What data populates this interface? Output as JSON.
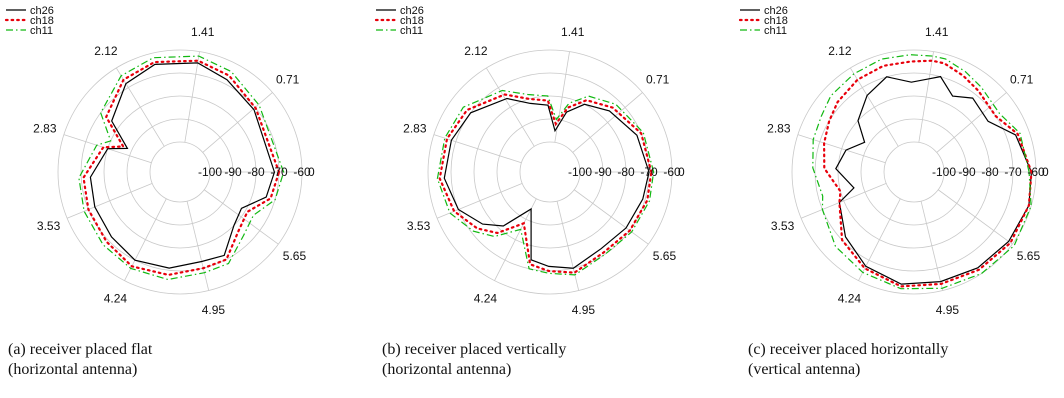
{
  "legend": [
    {
      "name": "ch26",
      "color": "#000000",
      "dash": "solid"
    },
    {
      "name": "ch18",
      "color": "#e8000b",
      "dash": "dotted"
    },
    {
      "name": "ch11",
      "color": "#11b811",
      "dash": "dashdot"
    }
  ],
  "captions": [
    {
      "line1": "(a) receiver placed flat",
      "line2": "(horizontal antenna)"
    },
    {
      "line1": "(b) receiver placed vertically",
      "line2": "(horizontal antenna)"
    },
    {
      "line1": "(c)  receiver placed horizontally",
      "line2": "(vertical antenna)"
    }
  ],
  "chart_data": [
    {
      "type": "polar-line",
      "angle_tick_labels": [
        "0",
        "0.71",
        "1.41",
        "2.12",
        "2.83",
        "3.53",
        "4.24",
        "4.95",
        "5.65"
      ],
      "radial_tick_labels": [
        "-100",
        "-90",
        "-80",
        "-70",
        "-60"
      ],
      "rlim": [
        -100,
        -60
      ],
      "grid": true,
      "legend_placement": "top-left",
      "series": [
        {
          "name": "ch26",
          "points": [
            [
              0,
              -72
            ],
            [
              0.7,
              -71
            ],
            [
              1.1,
              -68
            ],
            [
              1.41,
              -65
            ],
            [
              1.8,
              -65
            ],
            [
              2.12,
              -68
            ],
            [
              2.5,
              -76
            ],
            [
              2.72,
              -88
            ],
            [
              2.83,
              -80
            ],
            [
              3.2,
              -74
            ],
            [
              3.53,
              -73
            ],
            [
              3.9,
              -72
            ],
            [
              4.24,
              -70
            ],
            [
              4.6,
              -71
            ],
            [
              4.95,
              -73
            ],
            [
              5.2,
              -72
            ],
            [
              5.5,
              -80
            ],
            [
              5.75,
              -82
            ],
            [
              6.0,
              -74
            ],
            [
              6.28,
              -72
            ]
          ]
        },
        {
          "name": "ch18",
          "points": [
            [
              0,
              -70
            ],
            [
              0.7,
              -70
            ],
            [
              1.1,
              -66
            ],
            [
              1.41,
              -64
            ],
            [
              1.8,
              -64
            ],
            [
              2.12,
              -66
            ],
            [
              2.5,
              -73
            ],
            [
              2.72,
              -86
            ],
            [
              2.83,
              -78
            ],
            [
              3.2,
              -71
            ],
            [
              3.53,
              -70
            ],
            [
              3.9,
              -69
            ],
            [
              4.24,
              -67
            ],
            [
              4.6,
              -68
            ],
            [
              4.95,
              -70
            ],
            [
              5.2,
              -70
            ],
            [
              5.5,
              -77
            ],
            [
              5.75,
              -79
            ],
            [
              6.0,
              -72
            ],
            [
              6.28,
              -70
            ]
          ]
        },
        {
          "name": "ch11",
          "points": [
            [
              0,
              -68
            ],
            [
              0.7,
              -68
            ],
            [
              1.1,
              -64
            ],
            [
              1.41,
              -62
            ],
            [
              1.8,
              -62
            ],
            [
              2.12,
              -64
            ],
            [
              2.5,
              -70
            ],
            [
              2.72,
              -80
            ],
            [
              2.83,
              -75
            ],
            [
              3.2,
              -69
            ],
            [
              3.53,
              -68
            ],
            [
              3.9,
              -67
            ],
            [
              4.24,
              -66
            ],
            [
              4.6,
              -66
            ],
            [
              4.95,
              -68
            ],
            [
              5.2,
              -68
            ],
            [
              5.5,
              -74
            ],
            [
              5.75,
              -76
            ],
            [
              6.0,
              -70
            ],
            [
              6.28,
              -68
            ]
          ]
        }
      ]
    },
    {
      "type": "polar-line",
      "angle_tick_labels": [
        "0",
        "0.71",
        "1.41",
        "2.12",
        "2.83",
        "3.53",
        "4.24",
        "4.95",
        "5.65"
      ],
      "radial_tick_labels": [
        "-100",
        "-90",
        "-80",
        "-70",
        "-60"
      ],
      "rlim": [
        -100,
        -60
      ],
      "grid": true,
      "legend_placement": "top-left",
      "series": [
        {
          "name": "ch26",
          "points": [
            [
              0,
              -70
            ],
            [
              0.4,
              -72
            ],
            [
              0.8,
              -76
            ],
            [
              1.1,
              -80
            ],
            [
              1.3,
              -86
            ],
            [
              1.45,
              -95
            ],
            [
              1.6,
              -84
            ],
            [
              1.85,
              -82
            ],
            [
              2.1,
              -76
            ],
            [
              2.5,
              -70
            ],
            [
              2.83,
              -68
            ],
            [
              3.2,
              -67
            ],
            [
              3.53,
              -70
            ],
            [
              3.8,
              -76
            ],
            [
              4.0,
              -82
            ],
            [
              4.24,
              -95
            ],
            [
              4.5,
              -74
            ],
            [
              4.7,
              -72
            ],
            [
              4.95,
              -70
            ],
            [
              5.3,
              -73
            ],
            [
              5.65,
              -72
            ],
            [
              6.0,
              -71
            ],
            [
              6.28,
              -70
            ]
          ]
        },
        {
          "name": "ch18",
          "points": [
            [
              0,
              -69
            ],
            [
              0.4,
              -70
            ],
            [
              0.8,
              -74
            ],
            [
              1.1,
              -78
            ],
            [
              1.3,
              -84
            ],
            [
              1.45,
              -92
            ],
            [
              1.6,
              -82
            ],
            [
              1.85,
              -80
            ],
            [
              2.1,
              -74
            ],
            [
              2.5,
              -68
            ],
            [
              2.83,
              -66
            ],
            [
              3.2,
              -65
            ],
            [
              3.53,
              -68
            ],
            [
              3.8,
              -73
            ],
            [
              4.0,
              -78
            ],
            [
              4.24,
              -88
            ],
            [
              4.5,
              -72
            ],
            [
              4.7,
              -70
            ],
            [
              4.95,
              -68
            ],
            [
              5.3,
              -71
            ],
            [
              5.65,
              -70
            ],
            [
              6.0,
              -69
            ],
            [
              6.28,
              -69
            ]
          ]
        },
        {
          "name": "ch11",
          "points": [
            [
              0,
              -68
            ],
            [
              0.4,
              -69
            ],
            [
              0.8,
              -72
            ],
            [
              1.1,
              -76
            ],
            [
              1.3,
              -82
            ],
            [
              1.45,
              -90
            ],
            [
              1.6,
              -80
            ],
            [
              1.85,
              -78
            ],
            [
              2.1,
              -72
            ],
            [
              2.5,
              -66
            ],
            [
              2.83,
              -65
            ],
            [
              3.2,
              -64
            ],
            [
              3.53,
              -66
            ],
            [
              3.8,
              -71
            ],
            [
              4.0,
              -76
            ],
            [
              4.24,
              -85
            ],
            [
              4.5,
              -70
            ],
            [
              4.7,
              -69
            ],
            [
              4.95,
              -67
            ],
            [
              5.3,
              -70
            ],
            [
              5.65,
              -69
            ],
            [
              6.0,
              -68
            ],
            [
              6.28,
              -68
            ]
          ]
        }
      ]
    },
    {
      "type": "polar-line",
      "angle_tick_labels": [
        "0",
        "0.71",
        "1.41",
        "2.12",
        "2.83",
        "3.53",
        "4.24",
        "4.95",
        "5.65"
      ],
      "radial_tick_labels": [
        "-100",
        "-90",
        "-80",
        "-70",
        "-60"
      ],
      "rlim": [
        -100,
        -60
      ],
      "grid": true,
      "legend_placement": "top-left",
      "series": [
        {
          "name": "ch26",
          "points": [
            [
              0,
              -62
            ],
            [
              0.35,
              -66
            ],
            [
              0.6,
              -74
            ],
            [
              0.9,
              -72
            ],
            [
              1.1,
              -76
            ],
            [
              1.3,
              -70
            ],
            [
              1.41,
              -72
            ],
            [
              1.6,
              -74
            ],
            [
              1.85,
              -70
            ],
            [
              2.12,
              -74
            ],
            [
              2.4,
              -80
            ],
            [
              2.6,
              -88
            ],
            [
              2.83,
              -82
            ],
            [
              3.1,
              -79
            ],
            [
              3.4,
              -86
            ],
            [
              3.53,
              -78
            ],
            [
              3.9,
              -72
            ],
            [
              4.24,
              -67
            ],
            [
              4.6,
              -64
            ],
            [
              4.95,
              -64
            ],
            [
              5.3,
              -63
            ],
            [
              5.65,
              -62
            ],
            [
              6.0,
              -61
            ],
            [
              6.28,
              -62
            ]
          ]
        },
        {
          "name": "ch18",
          "points": [
            [
              0,
              -62
            ],
            [
              0.35,
              -65
            ],
            [
              0.6,
              -70
            ],
            [
              0.9,
              -68
            ],
            [
              1.1,
              -66
            ],
            [
              1.3,
              -64
            ],
            [
              1.41,
              -64
            ],
            [
              1.6,
              -65
            ],
            [
              1.85,
              -65
            ],
            [
              2.12,
              -66
            ],
            [
              2.4,
              -68
            ],
            [
              2.6,
              -70
            ],
            [
              2.83,
              -72
            ],
            [
              3.1,
              -74
            ],
            [
              3.4,
              -80
            ],
            [
              3.53,
              -78
            ],
            [
              3.9,
              -70
            ],
            [
              4.24,
              -66
            ],
            [
              4.6,
              -63
            ],
            [
              4.95,
              -63
            ],
            [
              5.3,
              -62
            ],
            [
              5.65,
              -61
            ],
            [
              6.0,
              -61
            ],
            [
              6.28,
              -62
            ]
          ]
        },
        {
          "name": "ch11",
          "points": [
            [
              0,
              -63
            ],
            [
              0.35,
              -64
            ],
            [
              0.6,
              -68
            ],
            [
              0.9,
              -66
            ],
            [
              1.1,
              -64
            ],
            [
              1.3,
              -62
            ],
            [
              1.41,
              -62
            ],
            [
              1.6,
              -62
            ],
            [
              1.85,
              -62
            ],
            [
              2.12,
              -63
            ],
            [
              2.4,
              -64
            ],
            [
              2.6,
              -66
            ],
            [
              2.83,
              -67
            ],
            [
              3.1,
              -69
            ],
            [
              3.4,
              -72
            ],
            [
              3.53,
              -70
            ],
            [
              3.9,
              -66
            ],
            [
              4.24,
              -64
            ],
            [
              4.6,
              -62
            ],
            [
              4.95,
              -61
            ],
            [
              5.3,
              -60
            ],
            [
              5.65,
              -59
            ],
            [
              6.0,
              -60
            ],
            [
              6.28,
              -63
            ]
          ]
        }
      ]
    }
  ]
}
